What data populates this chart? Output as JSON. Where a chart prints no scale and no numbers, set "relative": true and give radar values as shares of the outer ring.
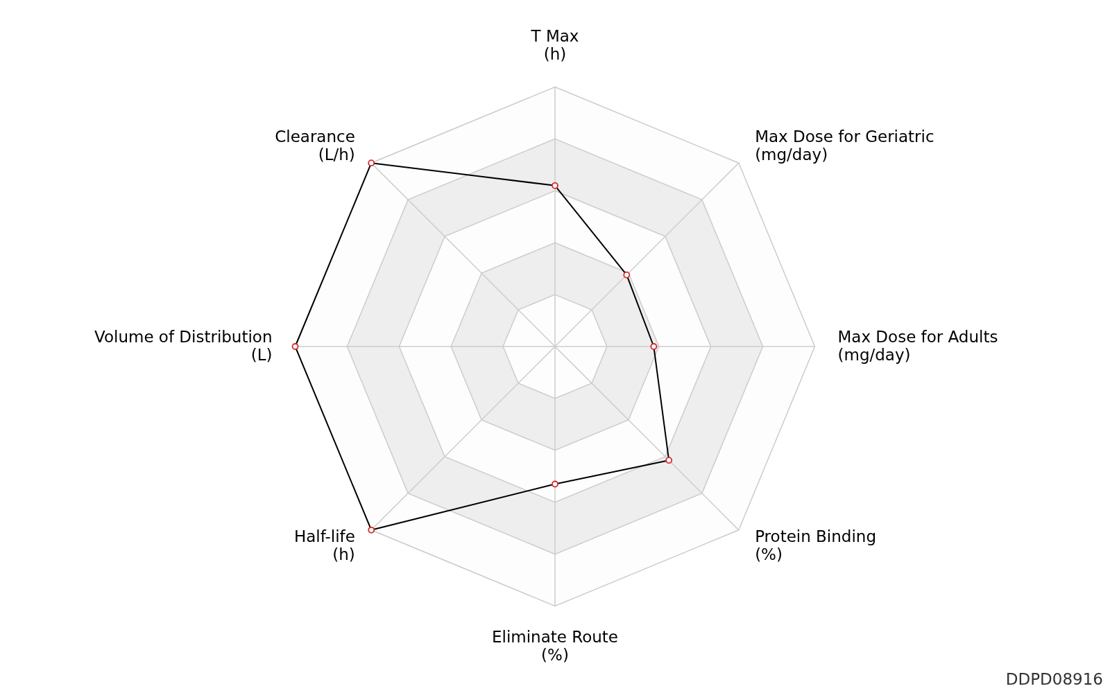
{
  "chart_data": {
    "type": "radar",
    "relative": true,
    "categories": [
      "T Max\n(h)",
      "Max Dose for Geriatric\n(mg/day)",
      "Max Dose for Adults\n(mg/day)",
      "Protein Binding\n(%)",
      "Eliminate Route\n(%)",
      "Half-life\n(h)",
      "Volume of Distribution\n(L)",
      "Clearance\n(L/h)"
    ],
    "series": [
      {
        "color": "#000000",
        "values": [
          0.62,
          0.39,
          0.38,
          0.62,
          0.53,
          1,
          1,
          1
        ]
      }
    ],
    "marker": "circle",
    "annotations": [
      "DDPD08916"
    ]
  }
}
